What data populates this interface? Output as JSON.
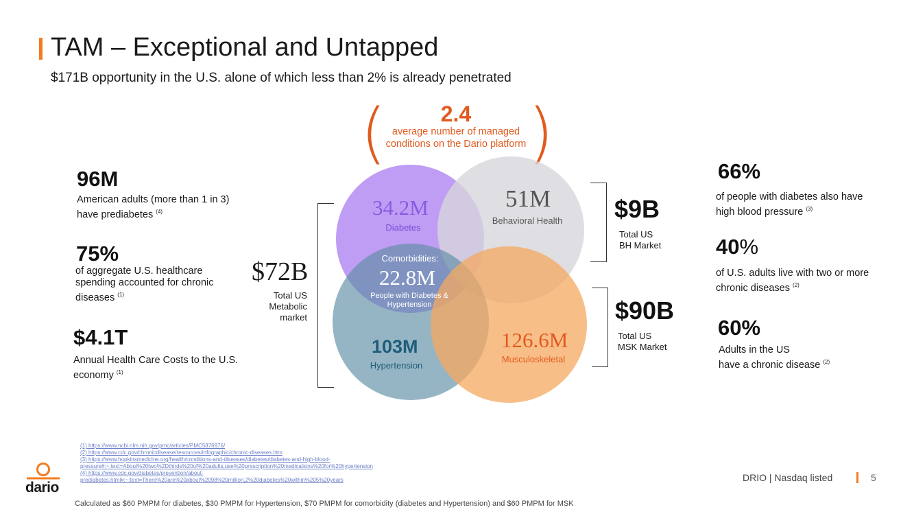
{
  "header": {
    "title": "TAM – Exceptional and Untapped",
    "subtitle": "$171B opportunity in the U.S. alone of which less than 2% is already penetrated"
  },
  "left_stats": [
    {
      "value": "96M",
      "desc": "American adults (more than 1 in 3) have prediabetes",
      "ref": "(4)"
    },
    {
      "value": "75%",
      "desc": "of aggregate U.S. healthcare spending accounted for chronic diseases",
      "ref": "(1)"
    },
    {
      "value": "$4.1T",
      "desc": "Annual Health Care Costs to the U.S. economy",
      "ref": "(1)"
    }
  ],
  "callout": {
    "value": "2.4",
    "text": "average number of managed conditions on the Dario platform"
  },
  "venn": {
    "diabetes": {
      "value": "34.2M",
      "label": "Diabetes"
    },
    "behavioral": {
      "value": "51M",
      "label": "Behavioral Health"
    },
    "comorbidities": {
      "title": "Comorbidities:",
      "value": "22.8M",
      "label": "People with Diabetes & Hypertension"
    },
    "hypertension": {
      "value": "103M",
      "label": "Hypertension"
    },
    "msk": {
      "value": "126.6M",
      "label": "Musculoskeletal"
    }
  },
  "markets": {
    "metabolic": {
      "value": "$72B",
      "label": "Total US Metabolic market"
    },
    "bh": {
      "value": "$9B",
      "label_line1": "Total US",
      "label_line2": "BH Market"
    },
    "msk": {
      "value": "$90B",
      "label_line1": "Total US",
      "label_line2": "MSK Market"
    }
  },
  "right_stats": [
    {
      "value": "66%",
      "desc": "of people with diabetes also have high blood pressure",
      "ref": "(3)"
    },
    {
      "value": "40",
      "suffix": "%",
      "desc": "of U.S. adults live with two or more chronic diseases",
      "ref": "(2)"
    },
    {
      "value": "60%",
      "desc_line1": "Adults in the US",
      "desc_line2": "have a chronic disease",
      "ref": "(2)"
    }
  ],
  "footnotes": [
    "(1) https://www.ncbi.nlm.nih.gov/pmc/articles/PMC5876976/",
    "(2) https://www.cdc.gov/chronicdisease/resources/infographic/chronic-diseases.htm",
    "(3) https://www.hopkinsmedicine.org/health/conditions-and-diseases/diabetes/diabetes-and-high-blood-",
    "pressure#:~:text=About%20two%2Dthirds%20of%20adults,use%20prescription%20medications%20for%20hypertension",
    "(4) https://www.cdc.gov/diabetes/prevention/about-",
    "prediabetes.html#:~:text=There%20are%20about%2098%20million,2%20diabetes%20within%205%20years"
  ],
  "calc_note": "Calculated as $60 PMPM for diabetes, $30 PMPM for Hypertension, $70 PMPM for comorbidity (diabetes and Hypertension) and $60 PMPM for MSK",
  "footer": {
    "listing": "DRIO | Nasdaq listed",
    "page": "5",
    "logo": "dario"
  },
  "colors": {
    "accent": "#f47b20",
    "callout": "#e15a1e",
    "diabetes": "#b48cf2",
    "behavioral": "#d9d9de",
    "hypertension": "#5d8ea4",
    "msk": "#f6a860",
    "comorbid": "#8f8fd6"
  }
}
